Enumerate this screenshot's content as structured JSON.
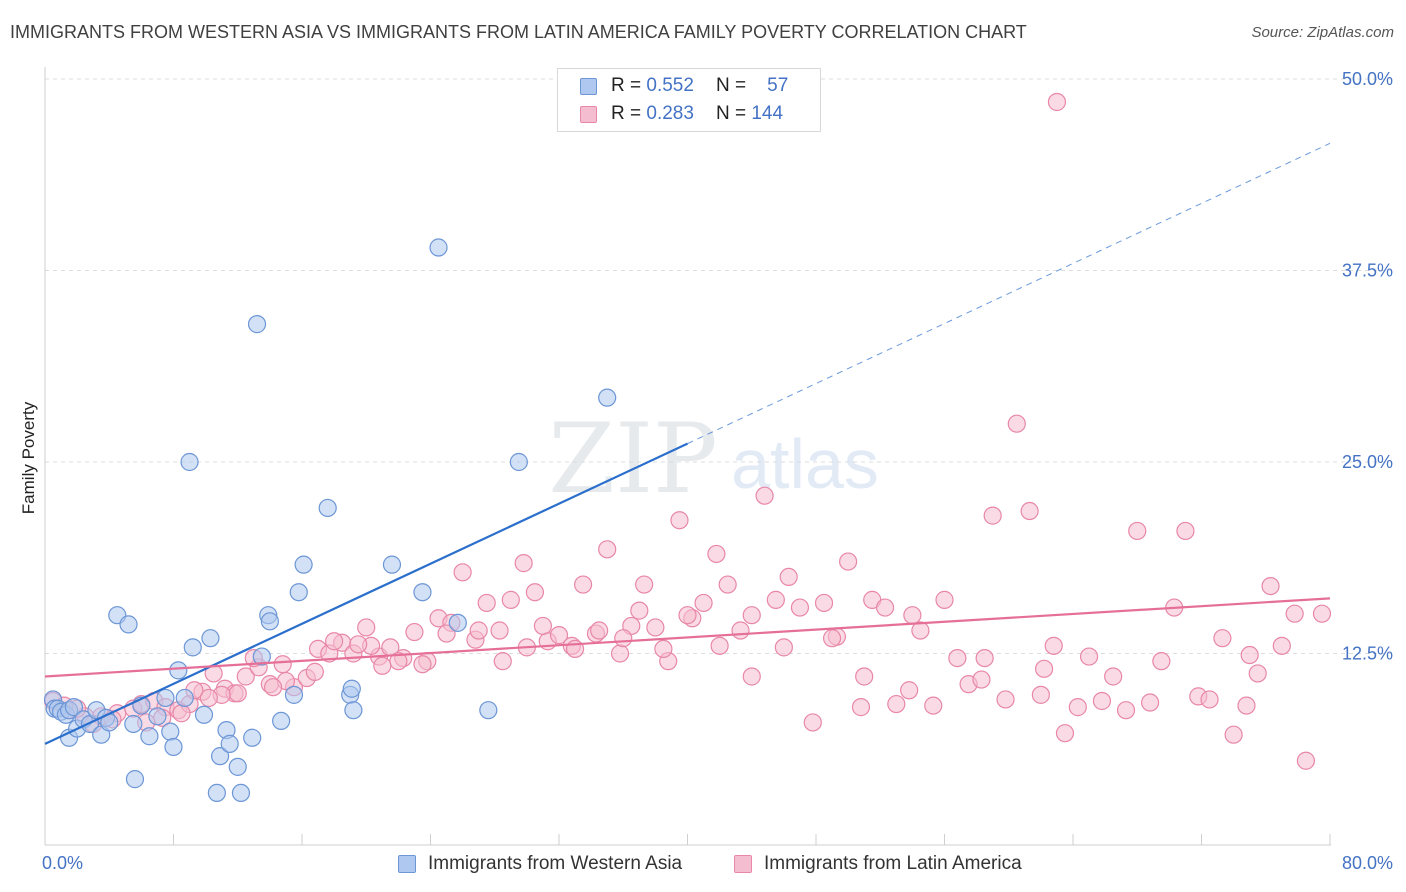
{
  "header": {
    "title": "IMMIGRANTS FROM WESTERN ASIA VS IMMIGRANTS FROM LATIN AMERICA FAMILY POVERTY CORRELATION CHART",
    "source": "Source: ZipAtlas.com"
  },
  "watermark": {
    "zip": "ZIP",
    "atlas": "atlas"
  },
  "legend": {
    "rows": [
      {
        "r_label": "R =",
        "r_value": "0.552",
        "n_label": "N =",
        "n_value": "57"
      },
      {
        "r_label": "R =",
        "r_value": "0.283",
        "n_label": "N =",
        "n_value": "144"
      }
    ]
  },
  "colors": {
    "blue_fill": "#aec8ef",
    "blue_stroke": "#6c96d6",
    "blue_line": "#2b6fcc",
    "pink_fill": "#f5bdd0",
    "pink_stroke": "#e887a8",
    "pink_line": "#e56f98",
    "grid": "#dcdcdc",
    "axis_text": "#4472c4"
  },
  "chart_data": {
    "type": "scatter",
    "title": "IMMIGRANTS FROM WESTERN ASIA VS IMMIGRANTS FROM LATIN AMERICA FAMILY POVERTY CORRELATION CHART",
    "xlabel": "",
    "ylabel": "Family Poverty",
    "xlim": [
      0,
      80
    ],
    "ylim": [
      0,
      50
    ],
    "x_tick_labels": [
      "0.0%",
      "80.0%"
    ],
    "y_ticks": [
      12.5,
      25.0,
      37.5,
      50.0
    ],
    "y_tick_labels": [
      "12.5%",
      "25.0%",
      "37.5%",
      "50.0%"
    ],
    "grid": true,
    "series": [
      {
        "name": "Immigrants from Western Asia",
        "color": "#aec8ef",
        "R": 0.552,
        "N": 57,
        "trend": {
          "x_start": 0,
          "y_start": 6.6,
          "x_end": 40,
          "y_end": 26.2,
          "dashed_to_x": 80,
          "dashed_to_y": 45.8
        },
        "points": [
          [
            0.5,
            9.5
          ],
          [
            0.6,
            8.9
          ],
          [
            0.8,
            8.9
          ],
          [
            1.0,
            8.7
          ],
          [
            1.3,
            8.5
          ],
          [
            1.5,
            8.8
          ],
          [
            1.8,
            9.0
          ],
          [
            1.5,
            7.0
          ],
          [
            2.0,
            7.6
          ],
          [
            2.4,
            8.2
          ],
          [
            2.8,
            7.9
          ],
          [
            3.2,
            8.8
          ],
          [
            3.5,
            7.2
          ],
          [
            3.8,
            8.3
          ],
          [
            4.5,
            15.0
          ],
          [
            5.2,
            14.4
          ],
          [
            5.5,
            7.9
          ],
          [
            6.0,
            9.1
          ],
          [
            6.5,
            7.1
          ],
          [
            7.0,
            8.4
          ],
          [
            7.5,
            9.6
          ],
          [
            7.8,
            7.4
          ],
          [
            8.0,
            6.4
          ],
          [
            8.3,
            11.4
          ],
          [
            8.7,
            9.6
          ],
          [
            9.0,
            25.0
          ],
          [
            9.2,
            12.9
          ],
          [
            9.9,
            8.5
          ],
          [
            10.3,
            13.5
          ],
          [
            10.7,
            3.4
          ],
          [
            10.9,
            5.8
          ],
          [
            11.3,
            7.5
          ],
          [
            11.5,
            6.6
          ],
          [
            12.0,
            5.1
          ],
          [
            12.2,
            3.4
          ],
          [
            12.9,
            7.0
          ],
          [
            13.2,
            34.0
          ],
          [
            13.5,
            12.3
          ],
          [
            13.9,
            15.0
          ],
          [
            14.0,
            14.6
          ],
          [
            14.7,
            8.1
          ],
          [
            15.5,
            9.8
          ],
          [
            15.8,
            16.5
          ],
          [
            16.1,
            18.3
          ],
          [
            17.6,
            22.0
          ],
          [
            19.0,
            9.8
          ],
          [
            19.1,
            10.2
          ],
          [
            19.2,
            8.8
          ],
          [
            21.6,
            18.3
          ],
          [
            23.5,
            16.5
          ],
          [
            24.5,
            39.0
          ],
          [
            25.7,
            14.5
          ],
          [
            27.6,
            8.8
          ],
          [
            29.5,
            25.0
          ],
          [
            35.0,
            29.2
          ],
          [
            5.6,
            4.3
          ],
          [
            4.0,
            8.0
          ]
        ]
      },
      {
        "name": "Immigrants from Latin America",
        "color": "#f5bdd0",
        "R": 0.283,
        "N": 144,
        "trend": {
          "x_start": 0,
          "y_start": 11.0,
          "x_end": 80,
          "y_end": 16.1
        },
        "points": [
          [
            0.5,
            9.4
          ],
          [
            1.5,
            8.8
          ],
          [
            2.5,
            8.4
          ],
          [
            3.5,
            8.4
          ],
          [
            4.5,
            8.6
          ],
          [
            5.5,
            8.9
          ],
          [
            6.0,
            9.2
          ],
          [
            6.8,
            9.4
          ],
          [
            7.5,
            9.0
          ],
          [
            8.3,
            8.8
          ],
          [
            9.0,
            9.2
          ],
          [
            9.8,
            10.0
          ],
          [
            10.5,
            11.2
          ],
          [
            11.2,
            10.2
          ],
          [
            11.8,
            9.9
          ],
          [
            12.5,
            11.0
          ],
          [
            13.3,
            11.6
          ],
          [
            14.0,
            10.5
          ],
          [
            14.8,
            11.8
          ],
          [
            15.5,
            10.3
          ],
          [
            16.3,
            10.9
          ],
          [
            17.0,
            12.8
          ],
          [
            17.7,
            12.5
          ],
          [
            18.5,
            13.2
          ],
          [
            19.2,
            12.5
          ],
          [
            20.0,
            14.2
          ],
          [
            20.8,
            12.3
          ],
          [
            21.5,
            12.9
          ],
          [
            22.3,
            12.2
          ],
          [
            23.0,
            13.9
          ],
          [
            23.8,
            12.0
          ],
          [
            24.5,
            14.8
          ],
          [
            25.3,
            14.5
          ],
          [
            26.0,
            17.8
          ],
          [
            26.8,
            13.4
          ],
          [
            27.5,
            15.8
          ],
          [
            28.3,
            14.0
          ],
          [
            29.0,
            16.0
          ],
          [
            29.8,
            18.4
          ],
          [
            30.5,
            16.5
          ],
          [
            31.3,
            13.3
          ],
          [
            32.0,
            13.7
          ],
          [
            32.8,
            13.0
          ],
          [
            33.5,
            17.0
          ],
          [
            34.3,
            13.8
          ],
          [
            35.0,
            19.3
          ],
          [
            35.8,
            12.5
          ],
          [
            36.5,
            14.3
          ],
          [
            37.3,
            17.0
          ],
          [
            38.0,
            14.2
          ],
          [
            38.8,
            12.0
          ],
          [
            39.5,
            21.2
          ],
          [
            40.3,
            14.8
          ],
          [
            41.0,
            15.8
          ],
          [
            41.8,
            19.0
          ],
          [
            42.5,
            17.0
          ],
          [
            43.3,
            14.0
          ],
          [
            44.0,
            15.0
          ],
          [
            44.8,
            22.8
          ],
          [
            45.5,
            16.0
          ],
          [
            46.3,
            17.5
          ],
          [
            47.0,
            15.5
          ],
          [
            47.8,
            8.0
          ],
          [
            48.5,
            15.8
          ],
          [
            49.3,
            13.6
          ],
          [
            50.0,
            18.5
          ],
          [
            50.8,
            9.0
          ],
          [
            51.5,
            16.0
          ],
          [
            52.3,
            15.5
          ],
          [
            53.0,
            9.2
          ],
          [
            53.8,
            10.1
          ],
          [
            54.5,
            14.0
          ],
          [
            55.3,
            9.1
          ],
          [
            56.0,
            16.0
          ],
          [
            56.8,
            12.2
          ],
          [
            57.5,
            10.5
          ],
          [
            58.3,
            10.8
          ],
          [
            59.0,
            21.5
          ],
          [
            59.8,
            9.5
          ],
          [
            60.5,
            27.5
          ],
          [
            61.3,
            21.8
          ],
          [
            62.0,
            9.8
          ],
          [
            62.8,
            13.0
          ],
          [
            63.5,
            7.3
          ],
          [
            64.3,
            9.0
          ],
          [
            65.0,
            12.3
          ],
          [
            65.8,
            9.4
          ],
          [
            66.5,
            11.0
          ],
          [
            67.3,
            8.8
          ],
          [
            68.0,
            20.5
          ],
          [
            68.8,
            9.3
          ],
          [
            69.5,
            12.0
          ],
          [
            70.3,
            15.5
          ],
          [
            71.0,
            20.5
          ],
          [
            71.8,
            9.7
          ],
          [
            72.5,
            9.5
          ],
          [
            73.3,
            13.5
          ],
          [
            74.0,
            7.2
          ],
          [
            74.8,
            9.1
          ],
          [
            75.5,
            11.2
          ],
          [
            76.3,
            16.9
          ],
          [
            77.0,
            13.0
          ],
          [
            77.8,
            15.1
          ],
          [
            78.5,
            5.5
          ],
          [
            79.5,
            15.1
          ],
          [
            63.0,
            48.5
          ],
          [
            62.2,
            11.5
          ],
          [
            58.5,
            12.2
          ],
          [
            54.0,
            15.0
          ],
          [
            51.0,
            11.0
          ],
          [
            49.0,
            13.5
          ],
          [
            46.0,
            12.9
          ],
          [
            44.0,
            11.0
          ],
          [
            42.0,
            13.0
          ],
          [
            40.0,
            15.0
          ],
          [
            38.5,
            12.8
          ],
          [
            37.0,
            15.3
          ],
          [
            36.0,
            13.5
          ],
          [
            34.5,
            14.0
          ],
          [
            33.0,
            12.8
          ],
          [
            31.0,
            14.3
          ],
          [
            30.0,
            12.9
          ],
          [
            28.5,
            12.0
          ],
          [
            27.0,
            14.0
          ],
          [
            25.0,
            13.8
          ],
          [
            23.5,
            11.8
          ],
          [
            22.0,
            12.0
          ],
          [
            21.0,
            11.7
          ],
          [
            20.3,
            13.0
          ],
          [
            19.5,
            13.1
          ],
          [
            18.0,
            13.3
          ],
          [
            16.8,
            11.3
          ],
          [
            15.0,
            10.7
          ],
          [
            14.2,
            10.3
          ],
          [
            13.0,
            12.2
          ],
          [
            12.0,
            9.9
          ],
          [
            11.0,
            9.8
          ],
          [
            10.2,
            9.6
          ],
          [
            9.3,
            10.1
          ],
          [
            8.5,
            8.6
          ],
          [
            7.3,
            8.3
          ],
          [
            6.3,
            8.0
          ],
          [
            4.2,
            8.2
          ],
          [
            3.0,
            7.9
          ],
          [
            2.0,
            8.9
          ],
          [
            1.2,
            9.1
          ],
          [
            75.0,
            12.4
          ]
        ]
      }
    ]
  },
  "bottom_legend": {
    "blue_label": "Immigrants from Western Asia",
    "pink_label": "Immigrants from Latin America"
  }
}
